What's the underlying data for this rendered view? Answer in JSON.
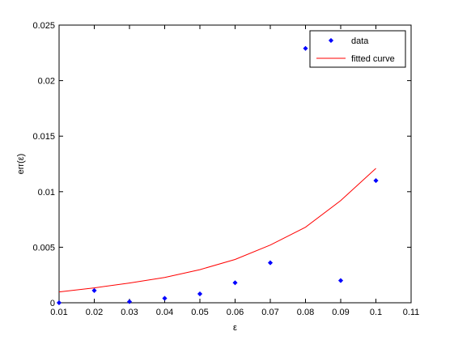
{
  "chart_data": {
    "type": "scatter",
    "xlabel": "ε",
    "ylabel": "err(ε)",
    "xlim": [
      0.01,
      0.11
    ],
    "ylim": [
      0,
      0.025
    ],
    "xticks": [
      0.01,
      0.02,
      0.03,
      0.04,
      0.05,
      0.06,
      0.07,
      0.08,
      0.09,
      0.1,
      0.11
    ],
    "yticks": [
      0,
      0.005,
      0.01,
      0.015,
      0.02,
      0.025
    ],
    "xtick_labels": [
      "0.01",
      "0.02",
      "0.03",
      "0.04",
      "0.05",
      "0.06",
      "0.07",
      "0.08",
      "0.09",
      "0.1",
      "0.11"
    ],
    "ytick_labels": [
      "0",
      "0.005",
      "0.01",
      "0.015",
      "0.02",
      "0.025"
    ],
    "grid": false,
    "legend_position": "top-right",
    "series": [
      {
        "name": "data",
        "kind": "scatter",
        "marker": "diamond",
        "color": "#0000ff",
        "x": [
          0.01,
          0.02,
          0.03,
          0.04,
          0.05,
          0.06,
          0.07,
          0.08,
          0.09,
          0.1
        ],
        "y": [
          0.0,
          0.0011,
          0.0001,
          0.0004,
          0.0008,
          0.0018,
          0.0036,
          0.0229,
          0.002,
          0.011
        ]
      },
      {
        "name": "fitted curve",
        "kind": "line",
        "color": "#ff0000",
        "x": [
          0.01,
          0.02,
          0.03,
          0.04,
          0.05,
          0.06,
          0.07,
          0.08,
          0.09,
          0.1
        ],
        "y": [
          0.00098,
          0.00134,
          0.00178,
          0.00228,
          0.00298,
          0.0039,
          0.0052,
          0.0068,
          0.0092,
          0.0121
        ]
      }
    ]
  }
}
